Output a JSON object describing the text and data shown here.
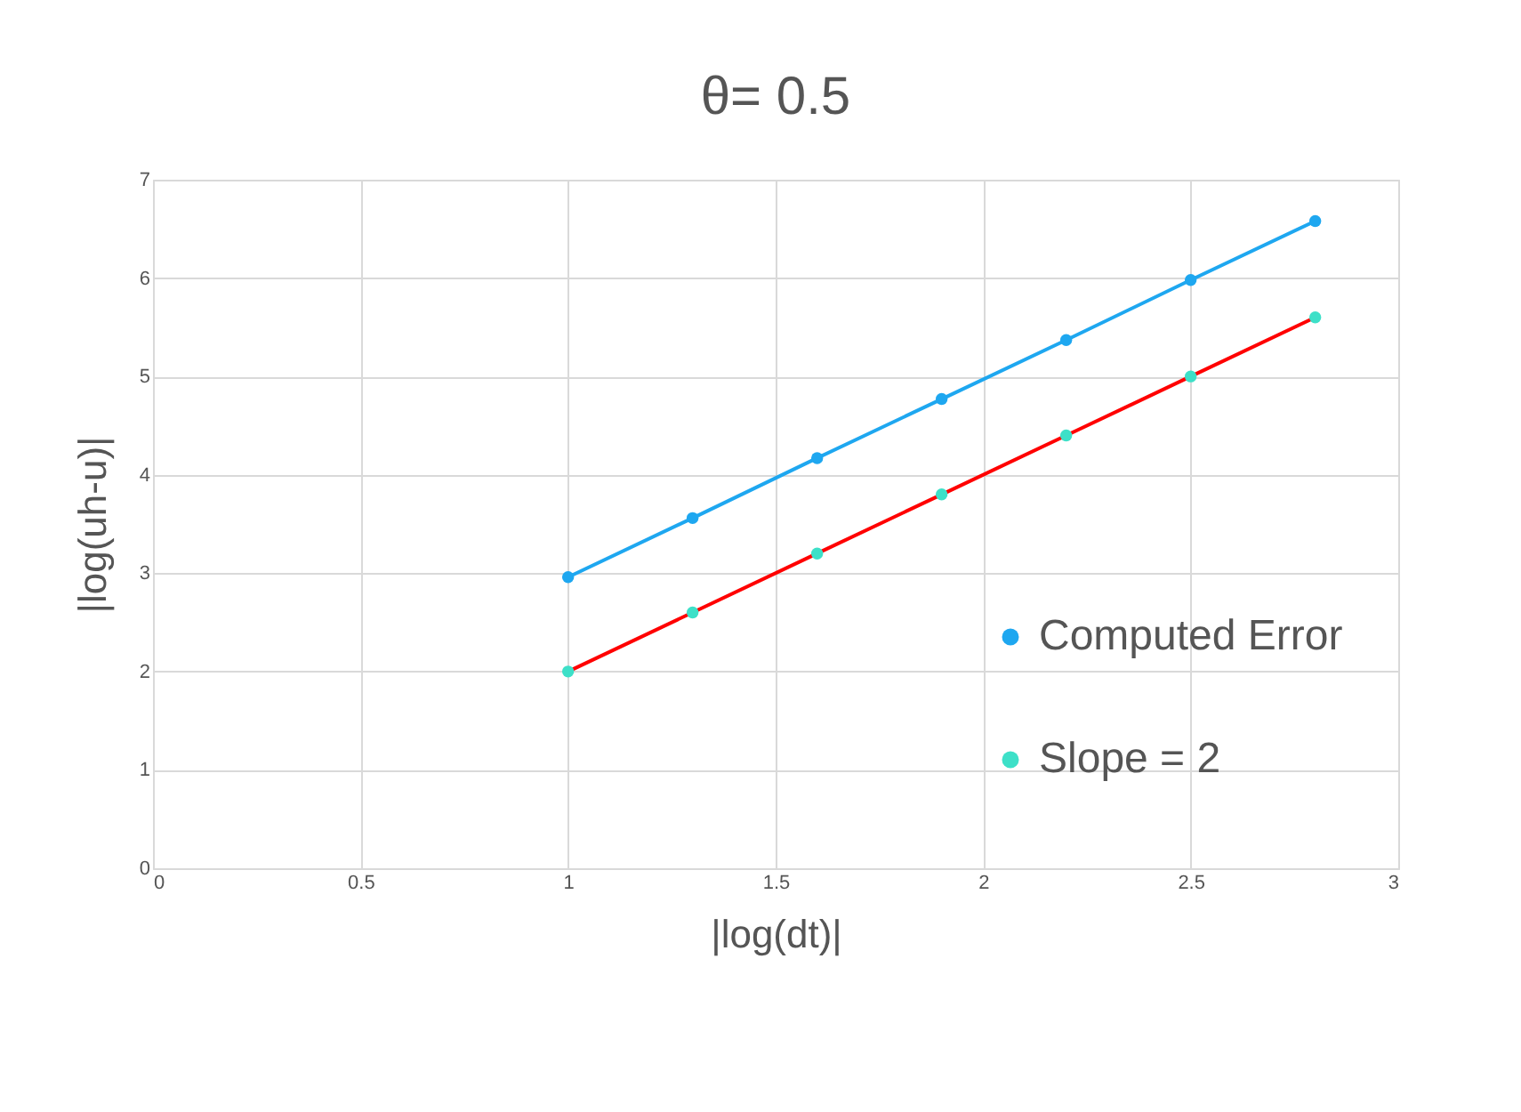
{
  "chart_data": {
    "type": "line",
    "title": "θ= 0.5",
    "xlabel": "|log(dt)|",
    "ylabel": "|log(uh-u)|",
    "x": [
      1,
      1.3,
      1.6,
      1.9,
      2.2,
      2.5,
      2.8
    ],
    "series": [
      {
        "name": "Computed Error",
        "color": "#1ea7f0",
        "values": [
          2.96,
          3.56,
          4.17,
          4.77,
          5.37,
          5.98,
          6.58
        ]
      },
      {
        "name": "Slope = 2",
        "color": "#ff0000",
        "colors": [
          "#3de0c8",
          "#3de0c8",
          "#3de0c8",
          "#3de0c8",
          "#3de0c8",
          "#3de0c8",
          "#3de0c8"
        ],
        "values": [
          2.0,
          2.6,
          3.2,
          3.8,
          4.4,
          5.0,
          5.6
        ]
      }
    ],
    "xlim": [
      0,
      3
    ],
    "xticks": [
      0,
      0.5,
      1,
      1.5,
      2,
      2.5,
      3
    ],
    "ylim": [
      0,
      7
    ],
    "yticks": [
      0,
      1,
      2,
      3,
      4,
      5,
      6,
      7
    ],
    "grid": true,
    "legend": "right",
    "marker": "circle",
    "line_style": "solid"
  }
}
